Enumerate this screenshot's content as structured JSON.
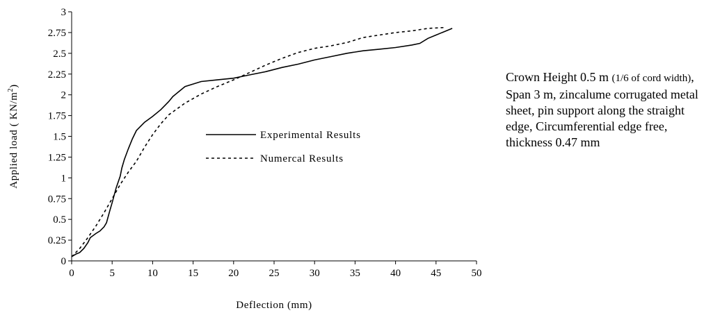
{
  "chart_data": {
    "type": "line",
    "xlabel": "Deflection (mm)",
    "ylabel": "Applied load ( KN/m",
    "ylabel_sup": "2",
    "ylabel_close": ")",
    "xlim": [
      0,
      50
    ],
    "ylim": [
      0,
      3
    ],
    "x_ticks": [
      "0",
      "5",
      "10",
      "15",
      "20",
      "25",
      "30",
      "35",
      "40",
      "45",
      "50"
    ],
    "y_ticks": [
      "0",
      "0.25",
      "0.5",
      "0.75",
      "1",
      "1.25",
      "1.5",
      "1.75",
      "2",
      "2.25",
      "2.5",
      "2.75",
      "3"
    ],
    "grid": false,
    "legend_position": "center",
    "series": [
      {
        "name": "Experimental Results",
        "style": "solid",
        "points": [
          [
            0,
            0.05
          ],
          [
            0.5,
            0.08
          ],
          [
            1,
            0.1
          ],
          [
            1.5,
            0.15
          ],
          [
            2,
            0.22
          ],
          [
            2.3,
            0.28
          ],
          [
            3,
            0.33
          ],
          [
            3.5,
            0.36
          ],
          [
            4,
            0.41
          ],
          [
            4.3,
            0.46
          ],
          [
            4.7,
            0.6
          ],
          [
            5,
            0.7
          ],
          [
            5.5,
            0.88
          ],
          [
            6,
            1.02
          ],
          [
            6.2,
            1.12
          ],
          [
            6.5,
            1.22
          ],
          [
            7,
            1.35
          ],
          [
            7.5,
            1.47
          ],
          [
            8,
            1.57
          ],
          [
            9,
            1.67
          ],
          [
            10,
            1.74
          ],
          [
            11,
            1.82
          ],
          [
            11.5,
            1.87
          ],
          [
            12,
            1.92
          ],
          [
            12.5,
            1.98
          ],
          [
            14,
            2.1
          ],
          [
            16,
            2.16
          ],
          [
            18,
            2.18
          ],
          [
            20,
            2.2
          ],
          [
            22,
            2.24
          ],
          [
            24,
            2.28
          ],
          [
            26,
            2.33
          ],
          [
            28,
            2.37
          ],
          [
            30,
            2.42
          ],
          [
            32,
            2.46
          ],
          [
            34,
            2.5
          ],
          [
            36,
            2.53
          ],
          [
            38,
            2.55
          ],
          [
            40,
            2.57
          ],
          [
            42,
            2.6
          ],
          [
            43,
            2.62
          ],
          [
            44,
            2.68
          ],
          [
            45,
            2.72
          ],
          [
            46,
            2.76
          ],
          [
            47,
            2.8
          ]
        ]
      },
      {
        "name": "Numercal Results",
        "style": "dashed",
        "points": [
          [
            0,
            0.05
          ],
          [
            1,
            0.15
          ],
          [
            2,
            0.28
          ],
          [
            3,
            0.42
          ],
          [
            4,
            0.58
          ],
          [
            5,
            0.75
          ],
          [
            6,
            0.92
          ],
          [
            7,
            1.07
          ],
          [
            8,
            1.2
          ],
          [
            9,
            1.37
          ],
          [
            10,
            1.52
          ],
          [
            11,
            1.65
          ],
          [
            12,
            1.76
          ],
          [
            14,
            1.9
          ],
          [
            16,
            2.01
          ],
          [
            18,
            2.1
          ],
          [
            20,
            2.18
          ],
          [
            22,
            2.27
          ],
          [
            24,
            2.36
          ],
          [
            26,
            2.44
          ],
          [
            28,
            2.51
          ],
          [
            30,
            2.56
          ],
          [
            32,
            2.59
          ],
          [
            34,
            2.63
          ],
          [
            36,
            2.69
          ],
          [
            38,
            2.72
          ],
          [
            40,
            2.75
          ],
          [
            42,
            2.77
          ],
          [
            44,
            2.8
          ],
          [
            46,
            2.81
          ]
        ]
      }
    ]
  },
  "note": {
    "part1": "Crown Height 0.5 m ",
    "part2": "(1/6 of cord width)",
    "part3": ", Span 3 m, zincalume corrugated metal sheet, pin support along the straight edge, Circumferential edge free, thickness 0.47 mm"
  }
}
